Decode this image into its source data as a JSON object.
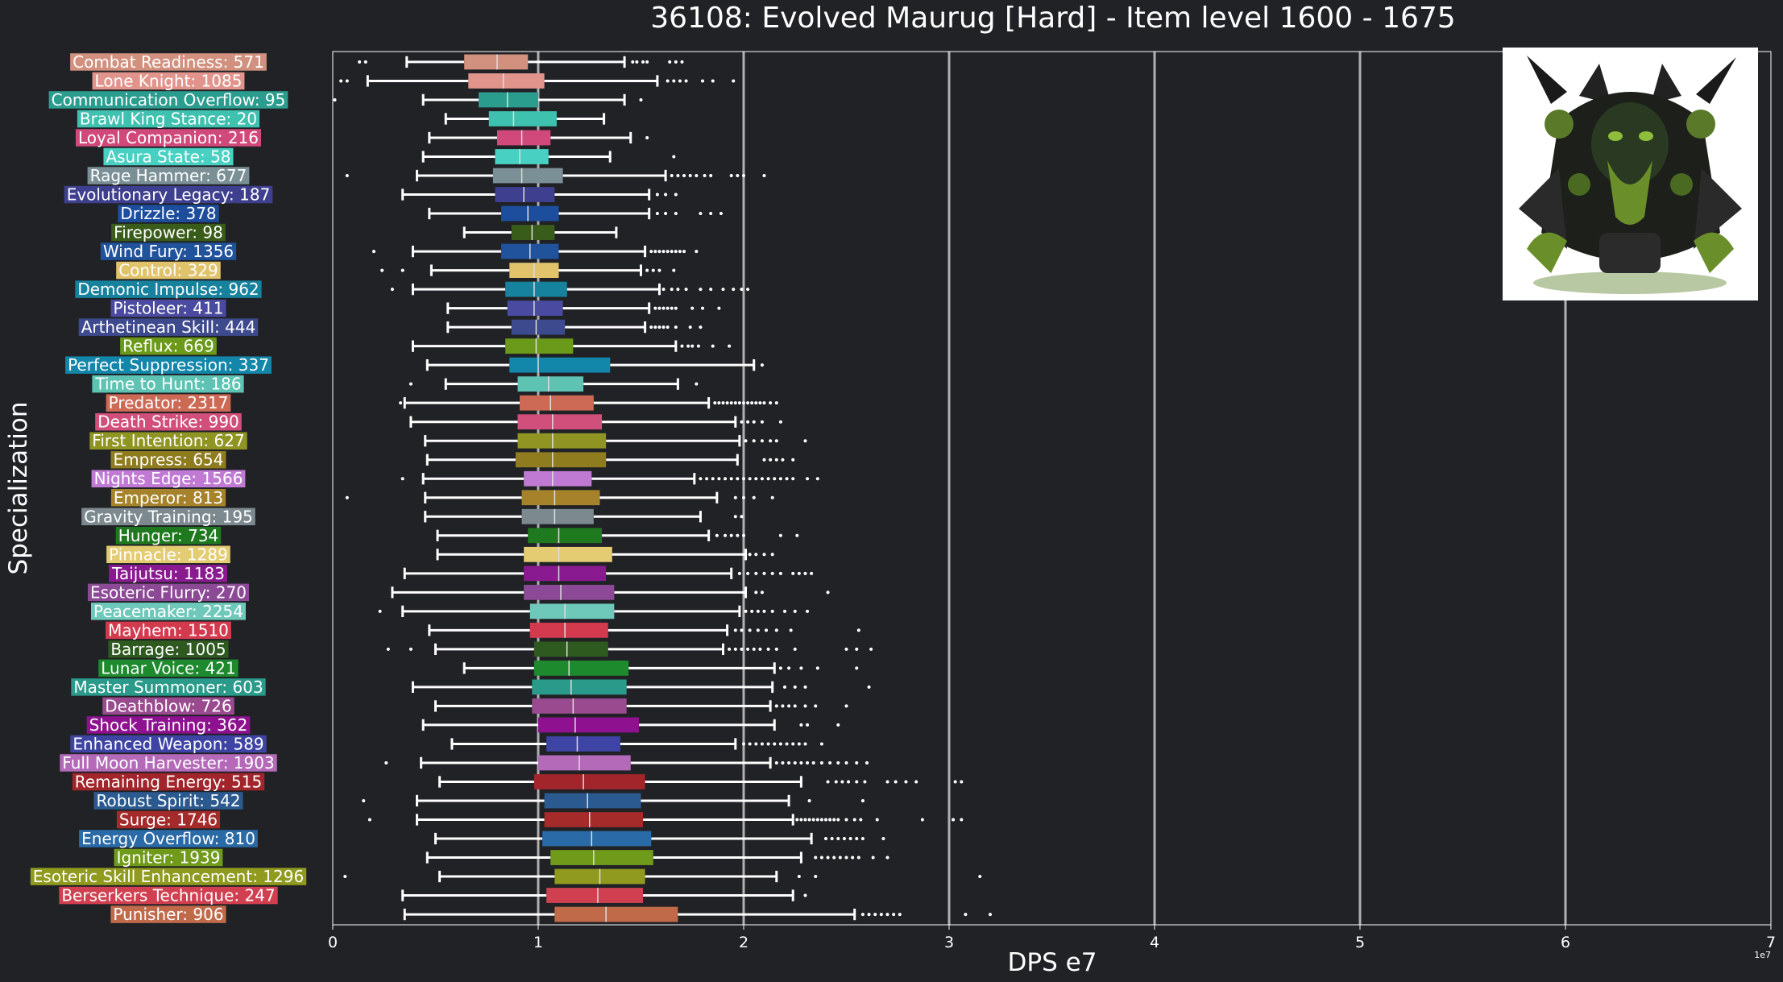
{
  "chart_data": {
    "type": "boxplot",
    "orientation": "horizontal",
    "title": "36108: Evolved Maurug [Hard] - Item level 1600 - 1675",
    "xlabel": "DPS e7",
    "ylabel": "Specialization",
    "x_scale_label": "1e7",
    "xlim": [
      0,
      7
    ],
    "xticks": [
      0,
      1,
      2,
      3,
      4,
      5,
      6,
      7
    ],
    "grid": "vertical",
    "categories": [
      {
        "label": "Combat Readiness: 571",
        "color": "#d2907e",
        "whislo": 0.36,
        "q1": 0.64,
        "med": 0.8,
        "q3": 0.95,
        "whishi": 1.42,
        "fliers": [
          0.13,
          0.16,
          1.46,
          1.48,
          1.51,
          1.53,
          1.64,
          1.67,
          1.7
        ]
      },
      {
        "label": "Lone Knight: 1085",
        "color": "#e1948b",
        "whislo": 0.17,
        "q1": 0.66,
        "med": 0.83,
        "q3": 1.03,
        "whishi": 1.58,
        "fliers": [
          0.04,
          0.07,
          1.63,
          1.66,
          1.69,
          1.72,
          1.8,
          1.85,
          1.95
        ]
      },
      {
        "label": "Communication Overflow: 95",
        "color": "#2a9d8f",
        "whislo": 0.44,
        "q1": 0.71,
        "med": 0.85,
        "q3": 1.0,
        "whishi": 1.42,
        "fliers": [
          0.01,
          1.5
        ]
      },
      {
        "label": "Brawl King Stance: 20",
        "color": "#3fc1b0",
        "whislo": 0.55,
        "q1": 0.76,
        "med": 0.88,
        "q3": 1.09,
        "whishi": 1.32,
        "fliers": []
      },
      {
        "label": "Loyal Companion: 216",
        "color": "#d1497a",
        "whislo": 0.47,
        "q1": 0.8,
        "med": 0.92,
        "q3": 1.06,
        "whishi": 1.45,
        "fliers": [
          1.53
        ]
      },
      {
        "label": "Asura State: 58",
        "color": "#48d1c2",
        "whislo": 0.44,
        "q1": 0.79,
        "med": 0.91,
        "q3": 1.05,
        "whishi": 1.35,
        "fliers": [
          1.66
        ]
      },
      {
        "label": "Rage Hammer: 677",
        "color": "#7a9096",
        "whislo": 0.41,
        "q1": 0.78,
        "med": 0.92,
        "q3": 1.12,
        "whishi": 1.62,
        "fliers": [
          0.07,
          1.65,
          1.68,
          1.71,
          1.74,
          1.77,
          1.81,
          1.84,
          1.94,
          1.97,
          2.0,
          2.1
        ]
      },
      {
        "label": "Evolutionary Legacy: 187",
        "color": "#3f3f8f",
        "whislo": 0.34,
        "q1": 0.79,
        "med": 0.93,
        "q3": 1.08,
        "whishi": 1.54,
        "fliers": [
          1.58,
          1.62,
          1.67
        ]
      },
      {
        "label": "Drizzle: 378",
        "color": "#1d4e9e",
        "whislo": 0.47,
        "q1": 0.82,
        "med": 0.95,
        "q3": 1.1,
        "whishi": 1.54,
        "fliers": [
          1.58,
          1.62,
          1.67,
          1.79,
          1.84,
          1.89
        ]
      },
      {
        "label": "Firepower: 98",
        "color": "#3a5c1a",
        "whislo": 0.64,
        "q1": 0.87,
        "med": 0.97,
        "q3": 1.08,
        "whishi": 1.38,
        "fliers": []
      },
      {
        "label": "Wind Fury: 1356",
        "color": "#21529c",
        "whislo": 0.39,
        "q1": 0.82,
        "med": 0.96,
        "q3": 1.1,
        "whishi": 1.52,
        "fliers": [
          0.2,
          1.55,
          1.57,
          1.59,
          1.61,
          1.63,
          1.65,
          1.67,
          1.69,
          1.71,
          1.77
        ]
      },
      {
        "label": "Control: 329",
        "color": "#e0c36a",
        "whislo": 0.48,
        "q1": 0.86,
        "med": 0.98,
        "q3": 1.1,
        "whishi": 1.5,
        "fliers": [
          0.24,
          0.34,
          1.53,
          1.56,
          1.59,
          1.66
        ]
      },
      {
        "label": "Demonic Impulse: 962",
        "color": "#17829e",
        "whislo": 0.39,
        "q1": 0.84,
        "med": 0.98,
        "q3": 1.14,
        "whishi": 1.59,
        "fliers": [
          0.29,
          1.61,
          1.65,
          1.68,
          1.72,
          1.79,
          1.84,
          1.9,
          1.95,
          1.99,
          2.02
        ]
      },
      {
        "label": "Pistoleer: 411",
        "color": "#4a4aa0",
        "whislo": 0.56,
        "q1": 0.85,
        "med": 0.98,
        "q3": 1.12,
        "whishi": 1.54,
        "fliers": [
          1.57,
          1.59,
          1.61,
          1.63,
          1.65,
          1.67,
          1.75,
          1.8,
          1.88
        ]
      },
      {
        "label": "Arthetinean Skill: 444",
        "color": "#3e4a8e",
        "whislo": 0.56,
        "q1": 0.87,
        "med": 0.99,
        "q3": 1.13,
        "whishi": 1.52,
        "fliers": [
          1.55,
          1.57,
          1.59,
          1.61,
          1.63,
          1.67,
          1.74,
          1.79
        ]
      },
      {
        "label": "Reflux: 669",
        "color": "#6b9a1a",
        "whislo": 0.39,
        "q1": 0.84,
        "med": 0.99,
        "q3": 1.17,
        "whishi": 1.67,
        "fliers": [
          1.7,
          1.73,
          1.75,
          1.78,
          1.85,
          1.93
        ]
      },
      {
        "label": "Perfect Suppression: 337",
        "color": "#1287aa",
        "whislo": 0.46,
        "q1": 0.86,
        "med": 1.0,
        "q3": 1.35,
        "whishi": 2.05,
        "fliers": [
          2.09
        ]
      },
      {
        "label": "Time to Hunt: 186",
        "color": "#5ec3b3",
        "whislo": 0.55,
        "q1": 0.9,
        "med": 1.05,
        "q3": 1.22,
        "whishi": 1.68,
        "fliers": [
          0.38,
          1.77
        ]
      },
      {
        "label": "Predator: 2317",
        "color": "#cd6a55",
        "whislo": 0.35,
        "q1": 0.91,
        "med": 1.06,
        "q3": 1.27,
        "whishi": 1.83,
        "fliers": [
          0.33,
          1.86,
          1.88,
          1.9,
          1.92,
          1.94,
          1.96,
          1.98,
          2.0,
          2.02,
          2.04,
          2.06,
          2.08,
          2.1,
          2.13,
          2.16
        ]
      },
      {
        "label": "Death Strike: 990",
        "color": "#d14f7b",
        "whislo": 0.38,
        "q1": 0.9,
        "med": 1.07,
        "q3": 1.31,
        "whishi": 1.96,
        "fliers": [
          1.99,
          2.02,
          2.05,
          2.09,
          2.18
        ]
      },
      {
        "label": "First Intention: 627",
        "color": "#8f9422",
        "whislo": 0.45,
        "q1": 0.9,
        "med": 1.07,
        "q3": 1.33,
        "whishi": 1.98,
        "fliers": [
          2.01,
          2.05,
          2.09,
          2.13,
          2.16,
          2.3
        ]
      },
      {
        "label": "Empress: 654",
        "color": "#8f7c1e",
        "whislo": 0.46,
        "q1": 0.89,
        "med": 1.07,
        "q3": 1.33,
        "whishi": 1.97,
        "fliers": [
          2.1,
          2.13,
          2.16,
          2.19,
          2.24
        ]
      },
      {
        "label": "Nights Edge: 1566",
        "color": "#c07ad4",
        "whislo": 0.44,
        "q1": 0.93,
        "med": 1.07,
        "q3": 1.26,
        "whishi": 1.76,
        "fliers": [
          0.34,
          1.79,
          1.82,
          1.85,
          1.88,
          1.91,
          1.94,
          1.97,
          2.0,
          2.03,
          2.06,
          2.09,
          2.12,
          2.15,
          2.18,
          2.21,
          2.24,
          2.31,
          2.36
        ]
      },
      {
        "label": "Emperor: 813",
        "color": "#a6822a",
        "whislo": 0.45,
        "q1": 0.92,
        "med": 1.08,
        "q3": 1.3,
        "whishi": 1.87,
        "fliers": [
          0.07,
          1.96,
          2.0,
          2.05,
          2.14
        ]
      },
      {
        "label": "Gravity Training: 195",
        "color": "#7c8a90",
        "whislo": 0.45,
        "q1": 0.92,
        "med": 1.08,
        "q3": 1.27,
        "whishi": 1.79,
        "fliers": [
          1.96,
          1.99
        ]
      },
      {
        "label": "Hunger: 734",
        "color": "#1f7a1f",
        "whislo": 0.51,
        "q1": 0.95,
        "med": 1.1,
        "q3": 1.31,
        "whishi": 1.83,
        "fliers": [
          1.87,
          1.91,
          1.94,
          1.97,
          2.0,
          2.18,
          2.26
        ]
      },
      {
        "label": "Pinnacle: 1289",
        "color": "#e3cc72",
        "whislo": 0.51,
        "q1": 0.93,
        "med": 1.1,
        "q3": 1.36,
        "whishi": 2.01,
        "fliers": [
          2.03,
          2.06,
          2.1,
          2.14
        ]
      },
      {
        "label": "Taijutsu: 1183",
        "color": "#8a1a8f",
        "whislo": 0.35,
        "q1": 0.93,
        "med": 1.1,
        "q3": 1.33,
        "whishi": 1.94,
        "fliers": [
          1.98,
          2.02,
          2.06,
          2.1,
          2.14,
          2.18,
          2.24,
          2.27,
          2.3,
          2.33
        ]
      },
      {
        "label": "Esoteric Flurry: 270",
        "color": "#8c4a96",
        "whislo": 0.29,
        "q1": 0.93,
        "med": 1.11,
        "q3": 1.37,
        "whishi": 2.01,
        "fliers": [
          2.06,
          2.09,
          2.41
        ]
      },
      {
        "label": "Peacemaker: 2254",
        "color": "#6ec9bb",
        "whislo": 0.34,
        "q1": 0.96,
        "med": 1.13,
        "q3": 1.37,
        "whishi": 1.98,
        "fliers": [
          0.23,
          2.01,
          2.04,
          2.07,
          2.1,
          2.14,
          2.2,
          2.25,
          2.31
        ]
      },
      {
        "label": "Mayhem: 1510",
        "color": "#d43a4e",
        "whislo": 0.47,
        "q1": 0.96,
        "med": 1.13,
        "q3": 1.34,
        "whishi": 1.92,
        "fliers": [
          1.96,
          1.99,
          2.03,
          2.07,
          2.11,
          2.16,
          2.23,
          2.56
        ]
      },
      {
        "label": "Barrage: 1005",
        "color": "#2e5a1f",
        "whislo": 0.5,
        "q1": 0.98,
        "med": 1.14,
        "q3": 1.34,
        "whishi": 1.9,
        "fliers": [
          0.27,
          0.38,
          1.93,
          1.96,
          1.99,
          2.02,
          2.05,
          2.08,
          2.12,
          2.16,
          2.25,
          2.5,
          2.55,
          2.62
        ]
      },
      {
        "label": "Lunar Voice: 421",
        "color": "#1e8a2e",
        "whislo": 0.64,
        "q1": 0.98,
        "med": 1.15,
        "q3": 1.44,
        "whishi": 2.15,
        "fliers": [
          2.18,
          2.22,
          2.28,
          2.36,
          2.55
        ]
      },
      {
        "label": "Master Summoner: 603",
        "color": "#2a9a8a",
        "whislo": 0.39,
        "q1": 0.97,
        "med": 1.16,
        "q3": 1.43,
        "whishi": 2.14,
        "fliers": [
          2.2,
          2.25,
          2.3,
          2.61
        ]
      },
      {
        "label": "Deathblow: 726",
        "color": "#9a4a8f",
        "whislo": 0.5,
        "q1": 0.97,
        "med": 1.17,
        "q3": 1.43,
        "whishi": 2.13,
        "fliers": [
          2.16,
          2.19,
          2.22,
          2.25,
          2.3,
          2.35,
          2.5
        ]
      },
      {
        "label": "Shock Training: 362",
        "color": "#8e128f",
        "whislo": 0.44,
        "q1": 1.0,
        "med": 1.18,
        "q3": 1.49,
        "whishi": 2.15,
        "fliers": [
          2.28,
          2.31,
          2.46
        ]
      },
      {
        "label": "Enhanced Weapon: 589",
        "color": "#3e44a3",
        "whislo": 0.58,
        "q1": 1.04,
        "med": 1.19,
        "q3": 1.4,
        "whishi": 1.96,
        "fliers": [
          2.0,
          2.03,
          2.06,
          2.09,
          2.12,
          2.15,
          2.18,
          2.21,
          2.24,
          2.27,
          2.3,
          2.38
        ]
      },
      {
        "label": "Full Moon Harvester: 1903",
        "color": "#b46ab8",
        "whislo": 0.43,
        "q1": 1.0,
        "med": 1.2,
        "q3": 1.45,
        "whishi": 2.13,
        "fliers": [
          0.26,
          2.16,
          2.19,
          2.22,
          2.25,
          2.28,
          2.31,
          2.34,
          2.38,
          2.42,
          2.46,
          2.5,
          2.55,
          2.6
        ]
      },
      {
        "label": "Remaining Energy: 515",
        "color": "#a1252a",
        "whislo": 0.52,
        "q1": 0.98,
        "med": 1.22,
        "q3": 1.52,
        "whishi": 2.28,
        "fliers": [
          2.41,
          2.45,
          2.48,
          2.51,
          2.55,
          2.59,
          2.7,
          2.74,
          2.79,
          2.84,
          3.03,
          3.06
        ]
      },
      {
        "label": "Robust Spirit: 542",
        "color": "#2a5a8f",
        "whislo": 0.41,
        "q1": 1.03,
        "med": 1.24,
        "q3": 1.5,
        "whishi": 2.22,
        "fliers": [
          0.15,
          2.32,
          2.58
        ]
      },
      {
        "label": "Surge: 1746",
        "color": "#a52a2a",
        "whislo": 0.41,
        "q1": 1.03,
        "med": 1.25,
        "q3": 1.51,
        "whishi": 2.24,
        "fliers": [
          0.18,
          2.26,
          2.28,
          2.3,
          2.32,
          2.34,
          2.36,
          2.38,
          2.4,
          2.42,
          2.44,
          2.46,
          2.5,
          2.54,
          2.57,
          2.65,
          2.87,
          3.02,
          3.06
        ]
      },
      {
        "label": "Energy Overflow: 810",
        "color": "#2a6aa6",
        "whislo": 0.5,
        "q1": 1.02,
        "med": 1.26,
        "q3": 1.55,
        "whishi": 2.33,
        "fliers": [
          2.4,
          2.43,
          2.46,
          2.49,
          2.52,
          2.55,
          2.58,
          2.68
        ]
      },
      {
        "label": "Igniter: 1939",
        "color": "#6f9a1a",
        "whislo": 0.46,
        "q1": 1.06,
        "med": 1.27,
        "q3": 1.56,
        "whishi": 2.28,
        "fliers": [
          2.35,
          2.38,
          2.41,
          2.44,
          2.47,
          2.5,
          2.53,
          2.56,
          2.63,
          2.7
        ]
      },
      {
        "label": "Esoteric Skill Enhancement: 1296",
        "color": "#8f9a1e",
        "whislo": 0.52,
        "q1": 1.08,
        "med": 1.3,
        "q3": 1.52,
        "whishi": 2.16,
        "fliers": [
          0.06,
          2.27,
          2.35,
          3.15
        ]
      },
      {
        "label": "Berserkers Technique: 247",
        "color": "#d04050",
        "whislo": 0.34,
        "q1": 1.04,
        "med": 1.29,
        "q3": 1.51,
        "whishi": 2.24,
        "fliers": [
          2.3
        ]
      },
      {
        "label": "Punisher: 906",
        "color": "#c06a4a",
        "whislo": 0.35,
        "q1": 1.08,
        "med": 1.33,
        "q3": 1.68,
        "whishi": 2.54,
        "fliers": [
          2.58,
          2.61,
          2.64,
          2.67,
          2.7,
          2.73,
          2.76,
          3.08,
          3.2
        ]
      }
    ]
  }
}
